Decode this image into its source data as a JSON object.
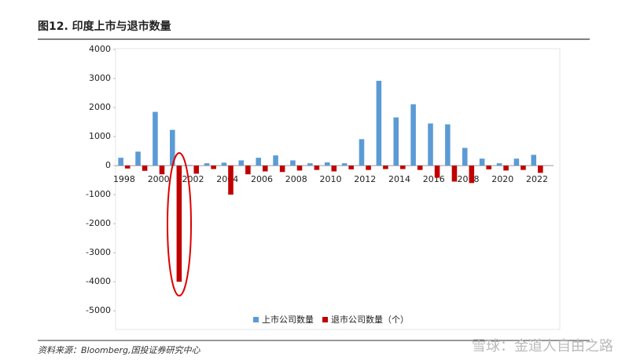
{
  "chart_data": {
    "type": "bar",
    "title": "图12. 印度上市与退市数量",
    "source": "资料来源：Bloomberg,国投证券研究中心",
    "watermark": "雪球：金道人自由之路",
    "categories": [
      "1998",
      null,
      "2000",
      null,
      "2002",
      null,
      "2004",
      null,
      "2006",
      null,
      "2008",
      null,
      "2010",
      null,
      "2012",
      null,
      "2014",
      null,
      "2016",
      null,
      "2018",
      null,
      "2020",
      null,
      "2022"
    ],
    "series": [
      {
        "name": "上市公司数量",
        "color": "#5b9bd5",
        "values": [
          270,
          480,
          1850,
          1230,
          20,
          80,
          100,
          180,
          270,
          350,
          180,
          80,
          110,
          80,
          910,
          2920,
          1660,
          2110,
          1450,
          1420,
          610,
          240,
          80,
          240,
          370
        ]
      },
      {
        "name": "退市公司数量（个）",
        "color": "#c00000",
        "values": [
          -100,
          -180,
          -300,
          -4000,
          -280,
          -120,
          -1000,
          -300,
          -200,
          -220,
          -170,
          -150,
          -200,
          -130,
          -150,
          -120,
          -120,
          -150,
          -420,
          -550,
          -600,
          -130,
          -170,
          -150,
          -250
        ]
      }
    ],
    "ylim": [
      -5400,
      4000
    ],
    "yticks": [
      4000,
      3000,
      2000,
      1000,
      0,
      -1000,
      -2000,
      -3000,
      -4000,
      -5000
    ],
    "grid": false
  }
}
